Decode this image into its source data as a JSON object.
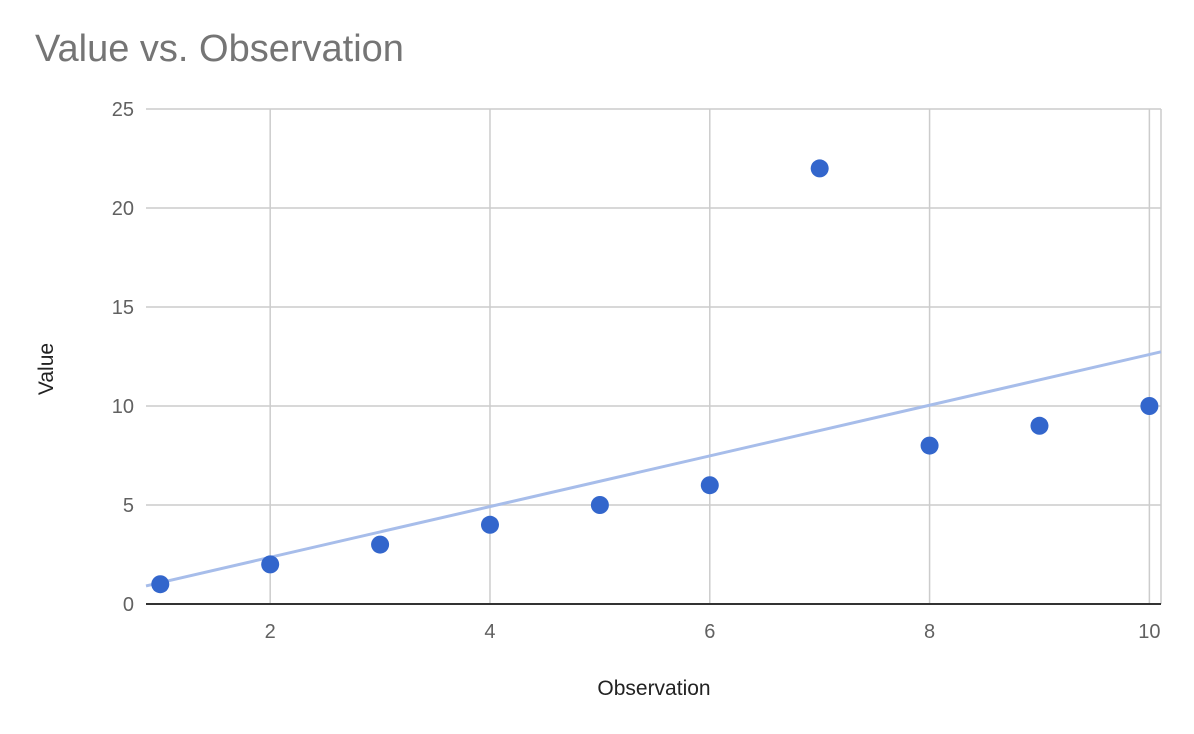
{
  "chart_data": {
    "type": "scatter",
    "title": "Value vs. Observation",
    "xlabel": "Observation",
    "ylabel": "Value",
    "xlim": [
      1,
      10
    ],
    "ylim": [
      0,
      25
    ],
    "x_ticks": [
      2,
      4,
      6,
      8,
      10
    ],
    "y_ticks": [
      0,
      5,
      10,
      15,
      20,
      25
    ],
    "grid": true,
    "legend": "none",
    "series": [
      {
        "x": [
          1,
          2,
          3,
          4,
          5,
          6,
          7,
          8,
          9,
          10
        ],
        "y": [
          1,
          2,
          3,
          4,
          5,
          6,
          22,
          8,
          9,
          10
        ],
        "color": "#3366cc"
      }
    ],
    "trendline": {
      "type": "linear",
      "slope": 1.28,
      "intercept": -0.2,
      "color": "#a7bdea"
    }
  }
}
